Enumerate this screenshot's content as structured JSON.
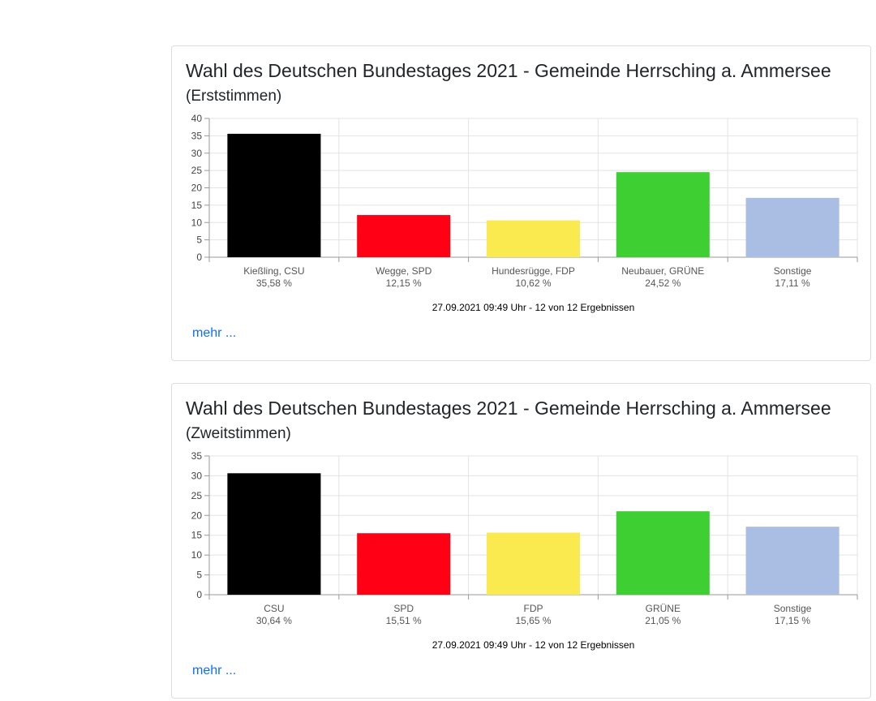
{
  "cards": [
    {
      "title_main": "Wahl des Deutschen Bundestages 2021 - Gemeinde Herrsching a. Ammersee",
      "title_sub": "(Erststimmen)",
      "footer": "27.09.2021 09:49 Uhr - 12 von 12 Ergebnissen",
      "more_label": "mehr ..."
    },
    {
      "title_main": "Wahl des Deutschen Bundestages 2021 - Gemeinde Herrsching a. Ammersee",
      "title_sub": "(Zweitstimmen)",
      "footer": "27.09.2021 09:49 Uhr - 12 von 12 Ergebnissen",
      "more_label": "mehr ..."
    }
  ],
  "chart_data": [
    {
      "type": "bar",
      "title": "Wahl des Deutschen Bundestages 2021 - Gemeinde Herrsching a. Ammersee (Erststimmen)",
      "categories": [
        "Kießling, CSU",
        "Wegge, SPD",
        "Hundesrügge, FDP",
        "Neubauer, GRÜNE",
        "Sonstige"
      ],
      "value_labels": [
        "35,58 %",
        "12,15 %",
        "10,62 %",
        "24,52 %",
        "17,11 %"
      ],
      "values": [
        35.58,
        12.15,
        10.62,
        24.52,
        17.11
      ],
      "colors": [
        "#000000",
        "#ff0015",
        "#fbea4f",
        "#3ecf33",
        "#aabde2"
      ],
      "ylim": [
        0,
        40
      ],
      "yticks": [
        0,
        5,
        10,
        15,
        20,
        25,
        30,
        35,
        40
      ],
      "grid": true,
      "legend": "none"
    },
    {
      "type": "bar",
      "title": "Wahl des Deutschen Bundestages 2021 - Gemeinde Herrsching a. Ammersee (Zweitstimmen)",
      "categories": [
        "CSU",
        "SPD",
        "FDP",
        "GRÜNE",
        "Sonstige"
      ],
      "value_labels": [
        "30,64 %",
        "15,51 %",
        "15,65 %",
        "21,05 %",
        "17,15 %"
      ],
      "values": [
        30.64,
        15.51,
        15.65,
        21.05,
        17.15
      ],
      "colors": [
        "#000000",
        "#ff0015",
        "#fbea4f",
        "#3ecf33",
        "#aabde2"
      ],
      "ylim": [
        0,
        35
      ],
      "yticks": [
        0,
        5,
        10,
        15,
        20,
        25,
        30,
        35
      ],
      "grid": true,
      "legend": "none"
    }
  ]
}
